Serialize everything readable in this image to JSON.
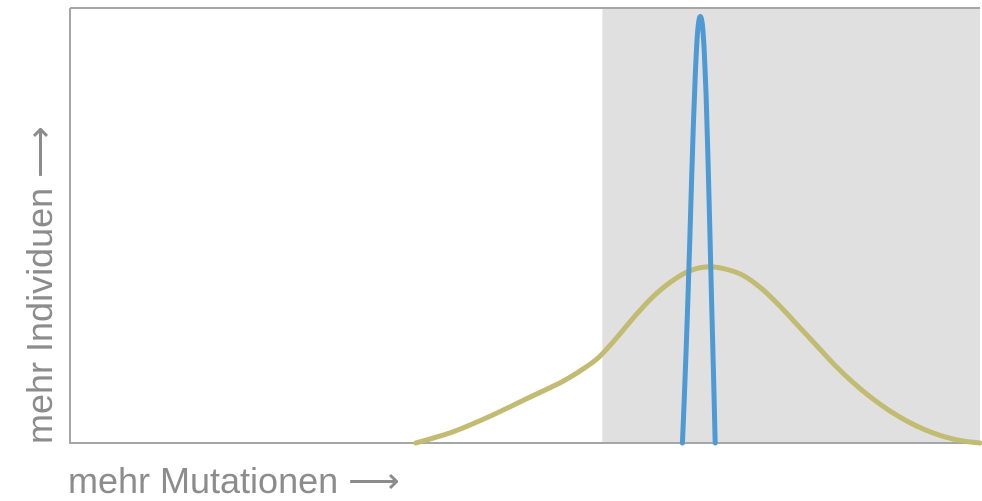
{
  "chart_data": {
    "type": "line",
    "title": "",
    "xlabel": "mehr Mutationen ⟶",
    "ylabel": "mehr Individuen ⟶",
    "xlim": [
      0,
      100
    ],
    "ylim": [
      0,
      100
    ],
    "grid": false,
    "legend": "none",
    "shaded_region": {
      "x_start": 58.5,
      "x_end": 100,
      "color": "#e0e0e0"
    },
    "series": [
      {
        "color": "#c2bb72",
        "x": [
          38,
          42,
          46,
          50,
          54,
          56,
          58,
          60,
          62,
          64,
          66,
          68,
          70,
          72,
          74,
          76,
          78,
          80,
          82,
          84,
          86,
          88,
          90,
          92,
          94,
          96,
          98,
          100
        ],
        "y": [
          0,
          2.5,
          6.0,
          10.0,
          14.0,
          16.5,
          19.5,
          24.0,
          29.0,
          33.5,
          37.0,
          39.5,
          40.5,
          40.0,
          38.5,
          35.5,
          31.5,
          27.0,
          22.5,
          18.0,
          14.0,
          10.5,
          7.5,
          5.0,
          3.0,
          1.5,
          0.5,
          0
        ]
      },
      {
        "color": "#4d9ad4",
        "x": [
          67.3,
          67.5,
          67.7,
          67.9,
          68.1,
          68.3,
          68.5,
          68.7,
          68.9,
          69.1,
          69.3,
          69.5,
          69.7,
          69.9,
          70.1,
          70.3,
          70.5,
          70.7,
          70.9
        ],
        "y": [
          0,
          10.0,
          21.0,
          33.0,
          46.0,
          60.0,
          73.0,
          84.0,
          92.5,
          97.0,
          98.0,
          96.0,
          90.0,
          80.0,
          66.0,
          50.0,
          33.0,
          17.0,
          0
        ]
      }
    ]
  }
}
